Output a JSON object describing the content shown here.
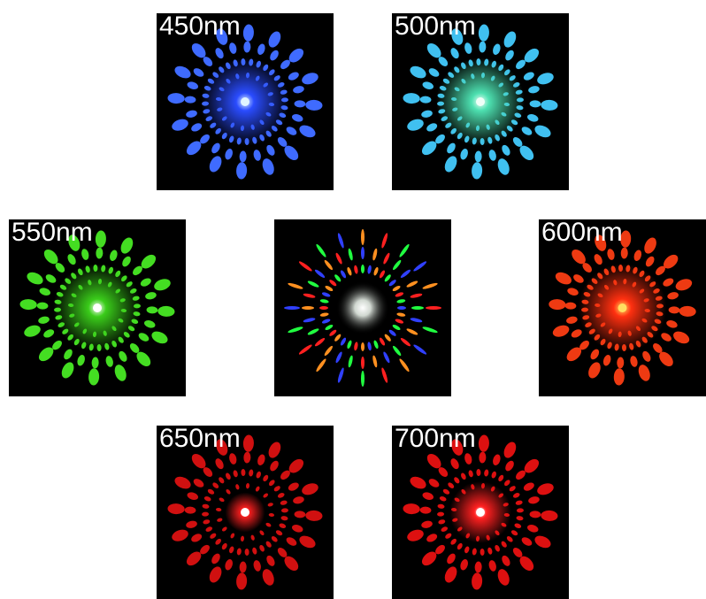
{
  "panels": [
    {
      "label": "450nm"
    },
    {
      "label": "500nm"
    },
    {
      "label": "550nm"
    },
    {
      "label": "600nm"
    },
    {
      "label": "650nm"
    },
    {
      "label": "700nm"
    }
  ]
}
